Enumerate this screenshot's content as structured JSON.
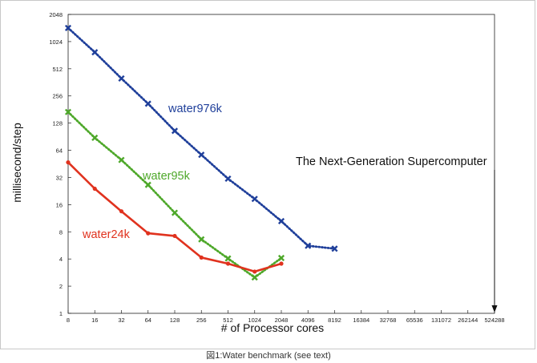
{
  "caption": "図1:Water benchmark (see text)",
  "chart_data": {
    "type": "line",
    "xlabel": "# of Processor cores",
    "ylabel": "millisecond/step",
    "x_scale": "log2",
    "y_scale": "log2",
    "xlim": [
      8,
      524288
    ],
    "ylim": [
      1,
      2048
    ],
    "x_ticks": [
      "8",
      "16",
      "32",
      "64",
      "128",
      "256",
      "512",
      "1024",
      "2048",
      "4096",
      "8192",
      "16384",
      "32768",
      "65536",
      "131072",
      "262144",
      "524288"
    ],
    "y_ticks": [
      "1",
      "2",
      "4",
      "8",
      "16",
      "32",
      "64",
      "128",
      "256",
      "512",
      "1024",
      "2048"
    ],
    "series": [
      {
        "name": "water976k",
        "color": "#1f3f9a",
        "line_style": "dotted",
        "marker": "x",
        "x": [
          8,
          16,
          32,
          64,
          128,
          256,
          512,
          1024,
          2048,
          4096,
          8192
        ],
        "y": [
          1450,
          780,
          400,
          210,
          105,
          57,
          31,
          18.5,
          10.5,
          5.6,
          5.2
        ]
      },
      {
        "name": "water95k",
        "color": "#4ea82a",
        "line_style": "dotted",
        "marker": "x",
        "x": [
          8,
          16,
          32,
          64,
          128,
          256,
          512,
          1024,
          2048
        ],
        "y": [
          170,
          88,
          50,
          26.5,
          13,
          6.6,
          4.05,
          2.5,
          4.1
        ]
      },
      {
        "name": "water24k",
        "color": "#e0321e",
        "line_style": "solid",
        "marker": "dot",
        "x": [
          8,
          16,
          32,
          64,
          128,
          256,
          512,
          1024,
          2048
        ],
        "y": [
          47,
          24,
          13.5,
          7.7,
          7.2,
          4.15,
          3.55,
          2.9,
          3.55
        ]
      }
    ],
    "annotations": [
      {
        "text": "The Next-Generation Supercomputer",
        "x": 524288,
        "arrow": true
      }
    ],
    "grid": false,
    "legend": "inline labels"
  }
}
